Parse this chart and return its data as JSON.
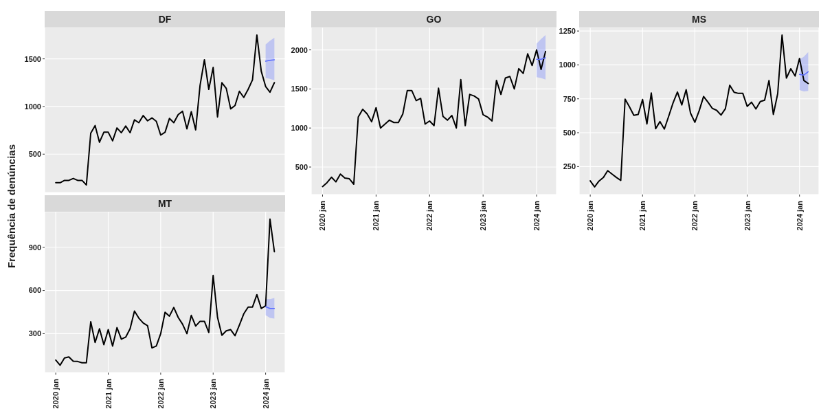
{
  "chart_data": [
    {
      "type": "line",
      "title": "DF",
      "ylabel": "Frequência de denúncias",
      "grid": true,
      "tick_labels": "y",
      "xlim": [
        "2019-10-15",
        "2024-05-15"
      ],
      "xticks": [
        {
          "value": "2020-01",
          "label": null
        },
        {
          "value": "2021-01",
          "label": null
        },
        {
          "value": "2022-01",
          "label": null
        },
        {
          "value": "2023-01",
          "label": null
        },
        {
          "value": "2024-01",
          "label": null
        }
      ],
      "ylim": [
        98,
        1829
      ],
      "yticks": [
        500,
        1000,
        1500
      ],
      "x": [
        "2020-01",
        "2020-02",
        "2020-03",
        "2020-04",
        "2020-05",
        "2020-06",
        "2020-07",
        "2020-08",
        "2020-09",
        "2020-10",
        "2020-11",
        "2020-12",
        "2021-01",
        "2021-02",
        "2021-03",
        "2021-04",
        "2021-05",
        "2021-06",
        "2021-07",
        "2021-08",
        "2021-09",
        "2021-10",
        "2021-11",
        "2021-12",
        "2022-01",
        "2022-02",
        "2022-03",
        "2022-04",
        "2022-05",
        "2022-06",
        "2022-07",
        "2022-08",
        "2022-09",
        "2022-10",
        "2022-11",
        "2022-12",
        "2023-01",
        "2023-02",
        "2023-03",
        "2023-04",
        "2023-05",
        "2023-06",
        "2023-07",
        "2023-08",
        "2023-09",
        "2023-10",
        "2023-11",
        "2023-12",
        "2024-01",
        "2024-02",
        "2024-03"
      ],
      "series": [
        {
          "color": "#000000",
          "values": [
            200,
            200,
            225,
            225,
            245,
            225,
            225,
            177,
            720,
            800,
            625,
            730,
            730,
            640,
            775,
            725,
            795,
            725,
            860,
            830,
            905,
            850,
            880,
            845,
            700,
            730,
            875,
            830,
            915,
            950,
            765,
            945,
            755,
            1220,
            1490,
            1180,
            1410,
            890,
            1250,
            1190,
            975,
            1010,
            1160,
            1095,
            1180,
            1280,
            1750,
            1370,
            1210,
            1150,
            1250
          ]
        },
        {
          "color": "#5a6cff",
          "x": [
            "2024-01",
            "2024-02",
            "2024-03"
          ],
          "values": [
            1475,
            1485,
            1490
          ],
          "lower": [
            1300,
            1290,
            1275
          ],
          "upper": [
            1650,
            1690,
            1720
          ]
        }
      ]
    },
    {
      "type": "line",
      "title": "GO",
      "grid": true,
      "xlim": [
        "2019-10-15",
        "2024-05-15"
      ],
      "xticks": [
        {
          "value": "2020-01",
          "label": "2020 jan"
        },
        {
          "value": "2021-01",
          "label": "2021 jan"
        },
        {
          "value": "2022-01",
          "label": "2022 jan"
        },
        {
          "value": "2023-01",
          "label": "2023 jan"
        },
        {
          "value": "2024-01",
          "label": "2024 jan"
        }
      ],
      "ylim": [
        148,
        2287
      ],
      "yticks": [
        500,
        1000,
        1500,
        2000
      ],
      "x": [
        "2020-01",
        "2020-02",
        "2020-03",
        "2020-04",
        "2020-05",
        "2020-06",
        "2020-07",
        "2020-08",
        "2020-09",
        "2020-10",
        "2020-11",
        "2020-12",
        "2021-01",
        "2021-02",
        "2021-03",
        "2021-04",
        "2021-05",
        "2021-06",
        "2021-07",
        "2021-08",
        "2021-09",
        "2021-10",
        "2021-11",
        "2021-12",
        "2022-01",
        "2022-02",
        "2022-03",
        "2022-04",
        "2022-05",
        "2022-06",
        "2022-07",
        "2022-08",
        "2022-09",
        "2022-10",
        "2022-11",
        "2022-12",
        "2023-01",
        "2023-02",
        "2023-03",
        "2023-04",
        "2023-05",
        "2023-06",
        "2023-07",
        "2023-08",
        "2023-09",
        "2023-10",
        "2023-11",
        "2023-12",
        "2024-01",
        "2024-02",
        "2024-03"
      ],
      "series": [
        {
          "color": "#000000",
          "values": [
            250,
            300,
            370,
            310,
            410,
            360,
            350,
            280,
            1140,
            1240,
            1180,
            1080,
            1260,
            1000,
            1050,
            1100,
            1070,
            1070,
            1180,
            1480,
            1480,
            1350,
            1380,
            1050,
            1090,
            1030,
            1510,
            1150,
            1100,
            1160,
            1000,
            1620,
            1030,
            1430,
            1410,
            1370,
            1170,
            1140,
            1090,
            1610,
            1430,
            1640,
            1660,
            1500,
            1760,
            1700,
            1950,
            1800,
            2000,
            1750,
            1980
          ]
        },
        {
          "color": "#5a6cff",
          "x": [
            "2024-01",
            "2024-02",
            "2024-03"
          ],
          "values": [
            1880,
            1880,
            1900
          ],
          "lower": [
            1650,
            1640,
            1620
          ],
          "upper": [
            2080,
            2140,
            2190
          ]
        }
      ]
    },
    {
      "type": "line",
      "title": "MS",
      "grid": true,
      "xlim": [
        "2019-10-15",
        "2024-05-15"
      ],
      "xticks": [
        {
          "value": "2020-01",
          "label": "2020 jan"
        },
        {
          "value": "2021-01",
          "label": "2021 jan"
        },
        {
          "value": "2022-01",
          "label": "2022 jan"
        },
        {
          "value": "2023-01",
          "label": "2023 jan"
        },
        {
          "value": "2024-01",
          "label": "2024 jan"
        }
      ],
      "ylim": [
        44,
        1276
      ],
      "yticks": [
        250,
        500,
        750,
        1000,
        1250
      ],
      "x": [
        "2020-01",
        "2020-02",
        "2020-03",
        "2020-04",
        "2020-05",
        "2020-06",
        "2020-07",
        "2020-08",
        "2020-09",
        "2020-10",
        "2020-11",
        "2020-12",
        "2021-01",
        "2021-02",
        "2021-03",
        "2021-04",
        "2021-05",
        "2021-06",
        "2021-07",
        "2021-08",
        "2021-09",
        "2021-10",
        "2021-11",
        "2021-12",
        "2022-01",
        "2022-02",
        "2022-03",
        "2022-04",
        "2022-05",
        "2022-06",
        "2022-07",
        "2022-08",
        "2022-09",
        "2022-10",
        "2022-11",
        "2022-12",
        "2023-01",
        "2023-02",
        "2023-03",
        "2023-04",
        "2023-05",
        "2023-06",
        "2023-07",
        "2023-08",
        "2023-09",
        "2023-10",
        "2023-11",
        "2023-12",
        "2024-01",
        "2024-02",
        "2024-03"
      ],
      "series": [
        {
          "color": "#000000",
          "values": [
            145,
            100,
            143,
            169,
            220,
            195,
            170,
            148,
            748,
            690,
            628,
            635,
            745,
            565,
            793,
            530,
            582,
            527,
            622,
            720,
            800,
            705,
            817,
            645,
            577,
            663,
            767,
            725,
            680,
            665,
            630,
            677,
            850,
            798,
            790,
            790,
            694,
            725,
            675,
            730,
            740,
            885,
            635,
            788,
            1220,
            903,
            972,
            918,
            1048,
            885,
            863
          ]
        },
        {
          "color": "#5a6cff",
          "x": [
            "2024-01",
            "2024-02",
            "2024-03"
          ],
          "values": [
            930,
            925,
            950
          ],
          "lower": [
            815,
            805,
            808
          ],
          "upper": [
            1040,
            1060,
            1095
          ]
        }
      ]
    },
    {
      "type": "line",
      "title": "MT",
      "grid": true,
      "xlim": [
        "2019-10-15",
        "2024-05-15"
      ],
      "xticks": [
        {
          "value": "2020-01",
          "label": "2020 jan"
        },
        {
          "value": "2021-01",
          "label": "2021 jan"
        },
        {
          "value": "2022-01",
          "label": "2022 jan"
        },
        {
          "value": "2023-01",
          "label": "2023 jan"
        },
        {
          "value": "2024-01",
          "label": "2024 jan"
        }
      ],
      "ylim": [
        30,
        1147
      ],
      "yticks": [
        300,
        600,
        900
      ],
      "x": [
        "2020-01",
        "2020-02",
        "2020-03",
        "2020-04",
        "2020-05",
        "2020-06",
        "2020-07",
        "2020-08",
        "2020-09",
        "2020-10",
        "2020-11",
        "2020-12",
        "2021-01",
        "2021-02",
        "2021-03",
        "2021-04",
        "2021-05",
        "2021-06",
        "2021-07",
        "2021-08",
        "2021-09",
        "2021-10",
        "2021-11",
        "2021-12",
        "2022-01",
        "2022-02",
        "2022-03",
        "2022-04",
        "2022-05",
        "2022-06",
        "2022-07",
        "2022-08",
        "2022-09",
        "2022-10",
        "2022-11",
        "2022-12",
        "2023-01",
        "2023-02",
        "2023-03",
        "2023-04",
        "2023-05",
        "2023-06",
        "2023-07",
        "2023-08",
        "2023-09",
        "2023-10",
        "2023-11",
        "2023-12",
        "2024-01",
        "2024-02",
        "2024-03"
      ],
      "series": [
        {
          "color": "#000000",
          "values": [
            117,
            81,
            131,
            139,
            109,
            107,
            98,
            98,
            383,
            239,
            334,
            223,
            328,
            214,
            342,
            262,
            276,
            334,
            457,
            408,
            374,
            355,
            201,
            214,
            300,
            449,
            422,
            482,
            413,
            366,
            300,
            427,
            353,
            386,
            386,
            308,
            704,
            413,
            289,
            320,
            328,
            286,
            360,
            438,
            485,
            485,
            571,
            475,
            494,
            1096,
            869
          ]
        },
        {
          "color": "#5a6cff",
          "x": [
            "2024-01",
            "2024-02",
            "2024-03"
          ],
          "values": [
            487,
            475,
            475
          ],
          "lower": [
            428,
            410,
            405
          ],
          "upper": [
            540,
            540,
            548
          ]
        }
      ]
    }
  ]
}
